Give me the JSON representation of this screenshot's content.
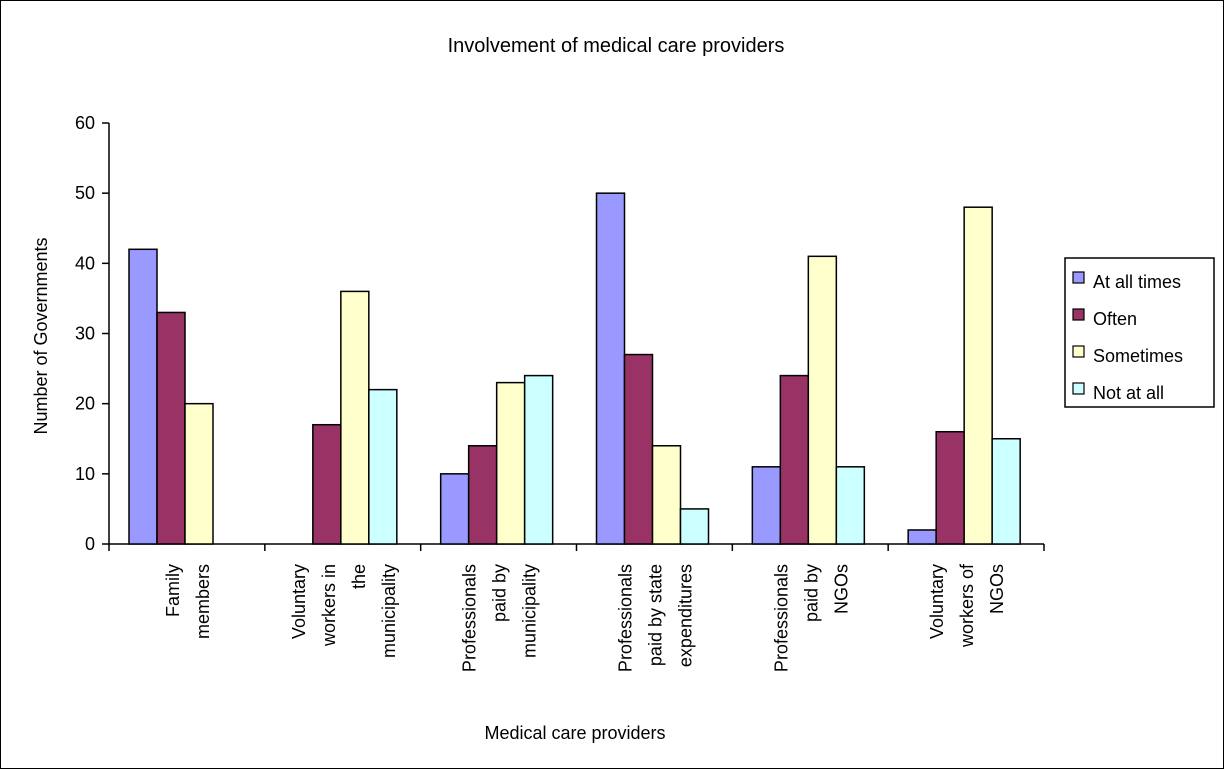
{
  "chart_data": {
    "type": "bar",
    "title": "Involvement of medical care providers",
    "xlabel": "Medical care providers",
    "ylabel": "Number of Governments",
    "ylim": [
      0,
      60
    ],
    "yticks": [
      0,
      10,
      20,
      30,
      40,
      50,
      60
    ],
    "grid": false,
    "legend_position": "right",
    "categories": [
      [
        "Family",
        "members"
      ],
      [
        "Voluntary",
        "workers in",
        "the",
        "municipality"
      ],
      [
        "Professionals",
        "paid by",
        "municipality"
      ],
      [
        "Professionals",
        "paid by state",
        "expenditures"
      ],
      [
        "Professionals",
        "paid by",
        "NGOs"
      ],
      [
        "Voluntary",
        "workers of",
        "NGOs"
      ]
    ],
    "series": [
      {
        "name": "At all times",
        "color": "#9999ff",
        "values": [
          42,
          null,
          10,
          50,
          11,
          2
        ]
      },
      {
        "name": "Often",
        "color": "#993366",
        "values": [
          33,
          17,
          14,
          27,
          24,
          16
        ]
      },
      {
        "name": "Sometimes",
        "color": "#ffffcc",
        "values": [
          20,
          36,
          23,
          14,
          41,
          48
        ]
      },
      {
        "name": "Not at all",
        "color": "#ccffff",
        "values": [
          null,
          22,
          24,
          5,
          11,
          15
        ]
      }
    ]
  }
}
